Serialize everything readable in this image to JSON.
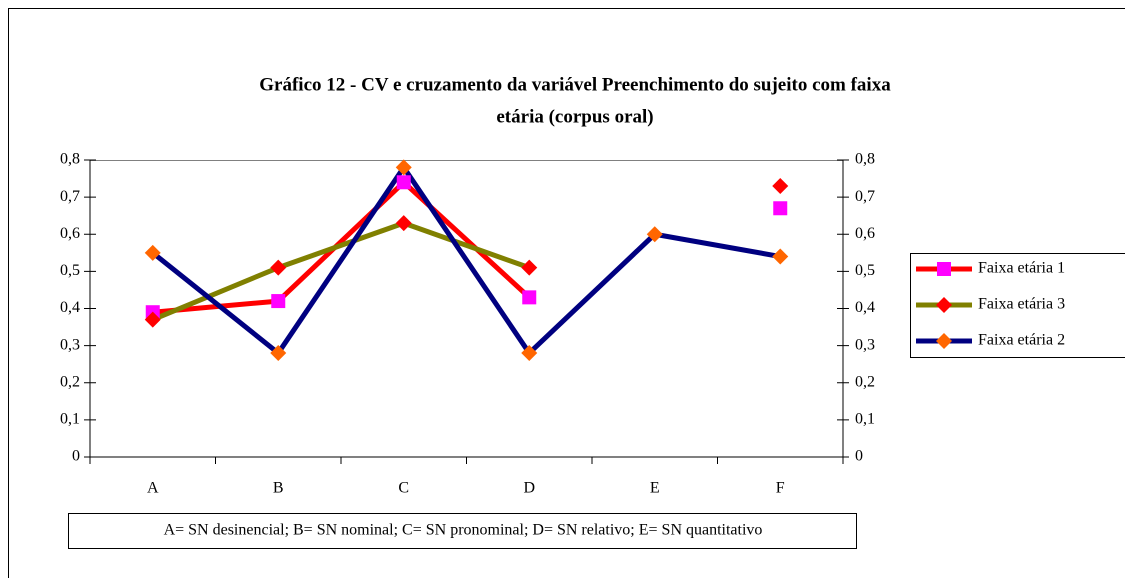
{
  "chart_data": {
    "type": "line",
    "title_lines": [
      "Gráfico 12 - CV e cruzamento da variável Preenchimento do sujeito com faixa",
      "etária (corpus oral)"
    ],
    "categories": [
      "A",
      "B",
      "C",
      "D",
      "E",
      "F"
    ],
    "series": [
      {
        "name": "Faixa etária 1",
        "color": "#ff0000",
        "marker": "square",
        "marker_color": "#ff00ff",
        "values": [
          0.39,
          0.42,
          0.74,
          0.43,
          null,
          0.67
        ]
      },
      {
        "name": "Faixa etária 3",
        "color": "#808000",
        "marker": "diamond",
        "marker_color": "#ff0000",
        "values": [
          0.37,
          0.51,
          0.63,
          0.51,
          null,
          0.73
        ]
      },
      {
        "name": "Faixa etária 2",
        "color": "#000080",
        "marker": "diamond",
        "marker_color": "#ff6600",
        "values": [
          0.55,
          0.28,
          0.78,
          0.28,
          0.6,
          0.54
        ]
      }
    ],
    "ylim": [
      0,
      0.8
    ],
    "yticks": [
      0,
      {
        "value": 0.1,
        "label": "0,1"
      },
      {
        "value": 0.2,
        "label": "0,2"
      },
      {
        "value": 0.3,
        "label": "0,3"
      },
      {
        "value": 0.4,
        "label": "0,4"
      },
      {
        "value": 0.5,
        "label": "0,5"
      },
      {
        "value": 0.6,
        "label": "0,6"
      },
      {
        "value": 0.7,
        "label": "0,7"
      },
      {
        "value": 0.8,
        "label": "0,8"
      }
    ],
    "y2lim": [
      0,
      0.8
    ],
    "y2ticks": [
      0,
      {
        "value": 0.1,
        "label": "0,1"
      },
      {
        "value": 0.2,
        "label": "0,2"
      },
      {
        "value": 0.3,
        "label": "0,3"
      },
      {
        "value": 0.4,
        "label": "0,4"
      },
      {
        "value": 0.5,
        "label": "0,5"
      },
      {
        "value": 0.6,
        "label": "0,6"
      },
      {
        "value": 0.7,
        "label": "0,7"
      },
      {
        "value": 0.8,
        "label": "0,8"
      }
    ],
    "legend": "right",
    "annotation": "A= SN desinencial; B= SN nominal; C= SN pronominal; D= SN relativo; E= SN quantitativo"
  }
}
